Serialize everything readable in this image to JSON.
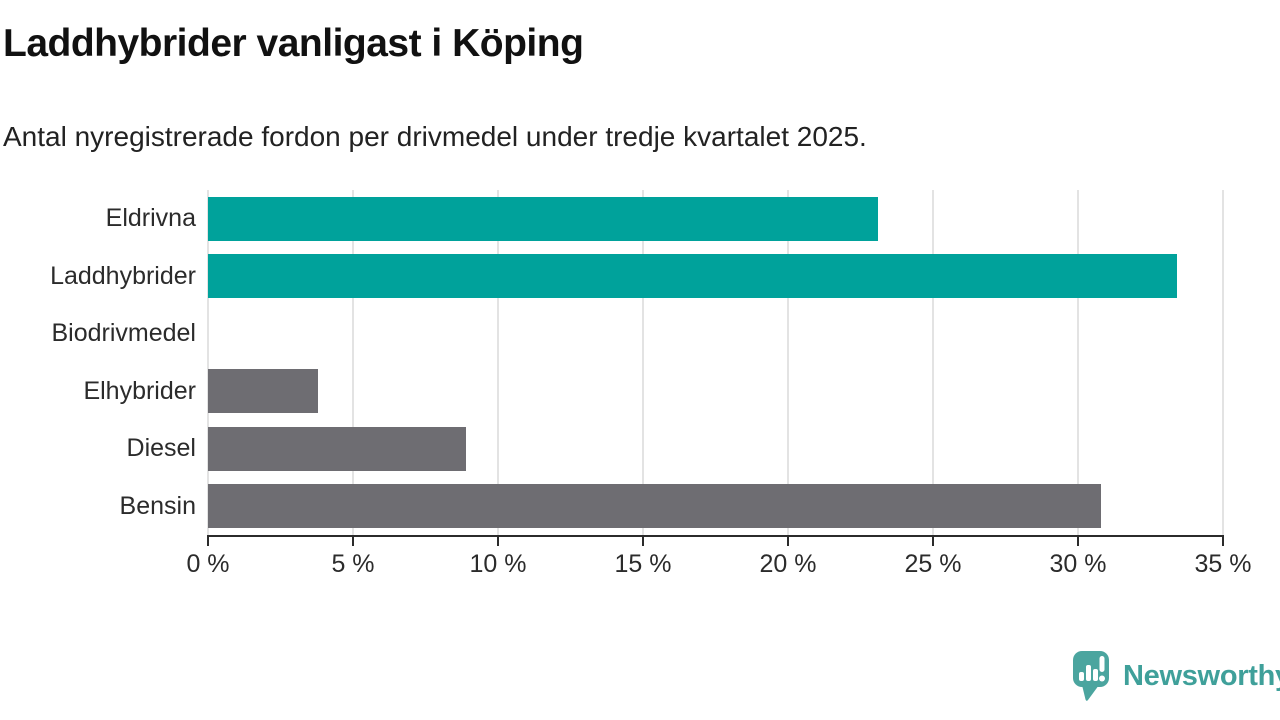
{
  "title": "Laddhybrider vanligast i Köping",
  "subtitle": "Antal nyregistrerade fordon per drivmedel under tredje kvartalet 2025.",
  "chart_data": {
    "type": "bar",
    "orientation": "horizontal",
    "title": "Laddhybrider vanligast i Köping",
    "subtitle": "Antal nyregistrerade fordon per drivmedel under tredje kvartalet 2025.",
    "categories": [
      "Eldrivna",
      "Laddhybrider",
      "Biodrivmedel",
      "Elhybrider",
      "Diesel",
      "Bensin"
    ],
    "values": [
      23.1,
      33.4,
      0,
      3.8,
      8.9,
      30.8
    ],
    "unit": "%",
    "bar_colors": [
      "#00A29B",
      "#00A29B",
      "#00A29B",
      "#6E6D72",
      "#6E6D72",
      "#6E6D72"
    ],
    "xlim": [
      0,
      35
    ],
    "x_ticks": [
      {
        "value": 0,
        "label": "0 %"
      },
      {
        "value": 5,
        "label": "5 %"
      },
      {
        "value": 10,
        "label": "10 %"
      },
      {
        "value": 15,
        "label": "15 %"
      },
      {
        "value": 20,
        "label": "20 %"
      },
      {
        "value": 25,
        "label": "25 %"
      },
      {
        "value": 30,
        "label": "30 %"
      },
      {
        "value": 35,
        "label": "35 %"
      }
    ],
    "grid": "vertical-gridlines",
    "legend": "none"
  },
  "branding": {
    "logo_text": "Newsworthy",
    "logo_icon": "newsworthy-speech-bubble-barchart-icon",
    "logo_icon_color": "#4BA59F",
    "logo_text_color": "#3FA09A"
  },
  "colors": {
    "bar_teal": "#00A29B",
    "bar_gray": "#6E6D72",
    "gridline": "#E3E3E3",
    "axis": "#2B2B2B",
    "tick_text": "#2B2B2B",
    "title_text": "#111111",
    "background": "#FFFFFF"
  }
}
